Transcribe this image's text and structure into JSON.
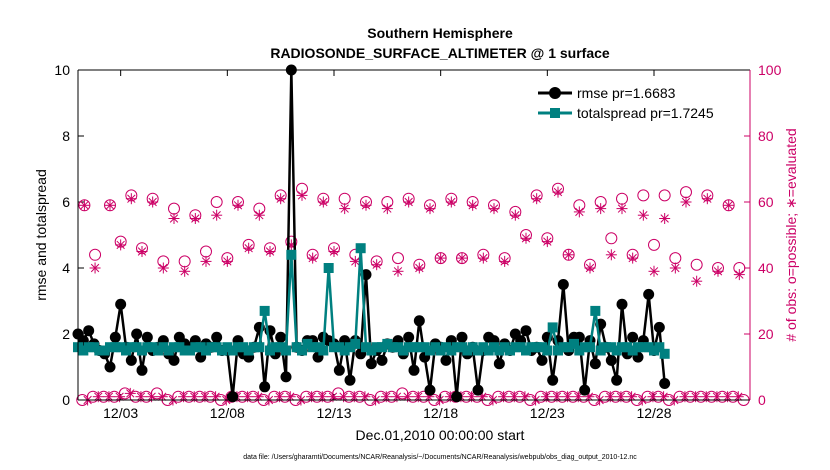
{
  "chart_data": {
    "type": "line",
    "title": "Southern Hemisphere",
    "subtitle": "RADIOSONDE_SURFACE_ALTIMETER @ 1 surface",
    "xlabel": "Dec.01,2010 00:00:00 start",
    "ylabel": "rmse and totalspread",
    "ylabel_right": "# of obs: o=possible; ∗=evaluated",
    "x_tick_labels": [
      "12/03",
      "12/08",
      "12/13",
      "12/18",
      "12/23",
      "12/28"
    ],
    "x_tick_days": [
      3,
      8,
      13,
      18,
      23,
      28
    ],
    "xlim": [
      1,
      32.5
    ],
    "ylim": [
      0,
      10
    ],
    "ylim_right": [
      0,
      100
    ],
    "y_ticks": [
      0,
      2,
      4,
      6,
      8,
      10
    ],
    "y_ticks_right": [
      0,
      20,
      40,
      60,
      80,
      100
    ],
    "legend": [
      "rmse pr=1.6683",
      "totalspread pr=1.7245"
    ],
    "legend_location": "top-right",
    "footer": "data file: /Users/gharamti/Documents/NCAR/Reanalysis/~/Documents/NCAR/Reanalysis/webpub/obs_diag_output_2010-12.nc",
    "colors": {
      "rmse": "#000000",
      "totalspread": "#008080",
      "obs": "#cc0066",
      "axis_right": "#cc0066"
    },
    "series": [
      {
        "name": "rmse",
        "axis": "left",
        "start_day": 1,
        "step_days": 0.25,
        "values": [
          2.0,
          1.8,
          2.1,
          1.7,
          1.5,
          1.4,
          1.0,
          1.9,
          2.9,
          1.6,
          1.2,
          2.0,
          0.9,
          1.9,
          1.5,
          1.6,
          1.8,
          1.4,
          1.2,
          1.9,
          1.7,
          1.6,
          1.8,
          1.3,
          1.7,
          1.6,
          1.9,
          1.5,
          1.5,
          0.1,
          1.8,
          1.4,
          1.3,
          1.6,
          2.2,
          0.4,
          2.1,
          1.4,
          1.9,
          0.7,
          10.0,
          1.6,
          1.5,
          1.8,
          1.8,
          1.3,
          1.9,
          1.8,
          1.7,
          0.9,
          1.8,
          0.6,
          1.8,
          1.4,
          3.8,
          1.1,
          1.5,
          1.2,
          1.7,
          1.6,
          1.8,
          1.4,
          1.9,
          0.9,
          2.4,
          1.3,
          0.3,
          1.7,
          1.6,
          1.2,
          1.8,
          0.1,
          1.9,
          1.4,
          1.6,
          0.3,
          1.5,
          1.9,
          1.8,
          1.1,
          1.7,
          1.5,
          2.0,
          1.8,
          2.1,
          1.5,
          1.6,
          1.2,
          1.9,
          0.6,
          1.8,
          3.5,
          1.5,
          1.9,
          1.9,
          0.3,
          1.8,
          1.1,
          2.3,
          1.6,
          1.2,
          0.6,
          2.9,
          1.4,
          1.9,
          1.3,
          1.8,
          3.2,
          1.5,
          2.2,
          0.5
        ]
      },
      {
        "name": "totalspread",
        "axis": "left",
        "start_day": 1,
        "step_days": 0.25,
        "values": [
          1.6,
          1.5,
          1.6,
          1.6,
          1.5,
          1.5,
          1.6,
          1.6,
          1.6,
          1.5,
          1.6,
          1.6,
          1.5,
          1.6,
          1.6,
          1.5,
          1.6,
          1.5,
          1.6,
          1.6,
          1.5,
          1.5,
          1.6,
          1.6,
          1.5,
          1.6,
          1.6,
          1.5,
          1.6,
          1.5,
          1.6,
          1.6,
          1.5,
          1.6,
          1.6,
          2.7,
          1.5,
          1.6,
          1.6,
          1.5,
          4.4,
          1.6,
          1.5,
          1.7,
          1.6,
          1.6,
          1.5,
          4.0,
          1.6,
          1.6,
          1.5,
          1.6,
          1.7,
          4.6,
          1.6,
          1.5,
          1.6,
          1.6,
          1.7,
          1.6,
          1.6,
          1.5,
          1.6,
          1.6,
          1.6,
          1.6,
          1.5,
          1.6,
          1.5,
          1.6,
          1.5,
          1.6,
          1.6,
          1.5,
          1.6,
          1.5,
          1.6,
          1.5,
          1.6,
          1.5,
          1.6,
          1.5,
          1.6,
          1.6,
          1.5,
          1.6,
          1.6,
          1.6,
          1.5,
          2.2,
          1.5,
          1.6,
          1.6,
          1.7,
          1.5,
          1.6,
          1.6,
          2.7,
          1.5,
          1.6,
          1.6,
          1.5,
          1.6,
          1.6,
          1.5,
          1.6,
          1.6,
          1.6,
          1.5,
          1.6,
          1.4
        ]
      },
      {
        "name": "obs possible (high)",
        "axis": "right",
        "marker": "circle",
        "days": [
          1.3,
          2.5,
          3.5,
          4.5,
          5.5,
          6.5,
          7.5,
          8.5,
          9.5,
          10.5,
          11.5,
          12.5,
          13.5,
          14.5,
          15.5,
          16.5,
          17.5,
          18.5,
          19.5,
          20.5,
          21.5,
          22.5,
          23.5,
          24.5,
          25.5,
          26.5,
          27.5,
          28.5,
          29.5,
          30.5,
          31.5
        ],
        "values": [
          59,
          59,
          62,
          61,
          58,
          56,
          60,
          60,
          58,
          62,
          64,
          61,
          61,
          60,
          60,
          61,
          59,
          61,
          60,
          59,
          57,
          62,
          64,
          59,
          60,
          61,
          62,
          62,
          63,
          62,
          59
        ]
      },
      {
        "name": "obs evaluated (high)",
        "axis": "right",
        "marker": "asterisk",
        "days": [
          1.3,
          2.5,
          3.5,
          4.5,
          5.5,
          6.5,
          7.5,
          8.5,
          9.5,
          10.5,
          11.5,
          12.5,
          13.5,
          14.5,
          15.5,
          16.5,
          17.5,
          18.5,
          19.5,
          20.5,
          21.5,
          22.5,
          23.5,
          24.5,
          25.5,
          26.5,
          27.5,
          28.5,
          29.5,
          30.5,
          31.5
        ],
        "values": [
          59,
          59,
          61,
          60,
          55,
          55,
          56,
          59,
          56,
          61,
          62,
          60,
          58,
          59,
          58,
          60,
          58,
          60,
          59,
          58,
          56,
          61,
          63,
          57,
          58,
          58,
          56,
          55,
          60,
          61,
          59
        ]
      },
      {
        "name": "obs possible (mid)",
        "axis": "right",
        "marker": "circle",
        "days": [
          1.8,
          3.0,
          4.0,
          5.0,
          6.0,
          7.0,
          8.0,
          9.0,
          10.0,
          11.0,
          12.0,
          13.0,
          14.0,
          15.0,
          16.0,
          17.0,
          18.0,
          19.0,
          20.0,
          21.0,
          22.0,
          23.0,
          24.0,
          25.0,
          26.0,
          27.0,
          28.0,
          29.0,
          30.0,
          31.0,
          32.0
        ],
        "values": [
          44,
          48,
          46,
          42,
          42,
          45,
          43,
          47,
          46,
          48,
          44,
          46,
          44,
          42,
          43,
          41,
          43,
          43,
          44,
          43,
          50,
          49,
          44,
          41,
          49,
          44,
          47,
          43,
          41,
          40,
          40
        ]
      },
      {
        "name": "obs evaluated (mid)",
        "axis": "right",
        "marker": "asterisk",
        "days": [
          1.8,
          3.0,
          4.0,
          5.0,
          6.0,
          7.0,
          8.0,
          9.0,
          10.0,
          11.0,
          12.0,
          13.0,
          14.0,
          15.0,
          16.0,
          17.0,
          18.0,
          19.0,
          20.0,
          21.0,
          22.0,
          23.0,
          24.0,
          25.0,
          26.0,
          27.0,
          28.0,
          29.0,
          30.0,
          31.0,
          32.0
        ],
        "values": [
          40,
          47,
          45,
          40,
          39,
          42,
          42,
          46,
          45,
          47,
          43,
          45,
          42,
          41,
          39,
          40,
          43,
          43,
          43,
          42,
          49,
          48,
          44,
          40,
          44,
          43,
          39,
          40,
          36,
          39,
          38
        ]
      },
      {
        "name": "obs possible (low)",
        "axis": "right",
        "marker": "circle",
        "start_day": 1.2,
        "step_days": 0.5,
        "values": [
          0,
          1,
          1,
          1,
          2,
          1,
          1,
          2,
          0,
          1,
          1,
          1,
          1,
          0,
          1,
          1,
          1,
          0,
          1,
          1,
          0,
          1,
          1,
          1,
          2,
          1,
          1,
          0,
          1,
          1,
          2,
          1,
          1,
          0,
          1,
          1,
          1,
          1,
          0,
          1,
          1,
          1,
          0,
          1,
          1,
          1,
          1,
          1,
          0,
          1,
          1,
          1,
          0,
          1,
          1,
          0,
          1,
          1,
          1,
          1,
          1,
          1,
          0
        ]
      },
      {
        "name": "obs evaluated (low)",
        "axis": "right",
        "marker": "asterisk",
        "start_day": 1.45,
        "step_days": 0.5,
        "values": [
          0,
          1,
          1,
          1,
          2,
          1,
          1,
          1,
          0,
          1,
          1,
          1,
          1,
          0,
          1,
          1,
          1,
          0,
          1,
          1,
          0,
          1,
          1,
          1,
          1,
          1,
          1,
          0,
          1,
          1,
          1,
          1,
          1,
          0,
          1,
          1,
          1,
          1,
          0,
          1,
          1,
          1,
          0,
          1,
          1,
          1,
          1,
          1,
          0,
          1,
          1,
          1,
          0,
          1,
          1,
          0,
          1,
          1,
          1,
          1,
          1,
          1
        ]
      }
    ]
  }
}
